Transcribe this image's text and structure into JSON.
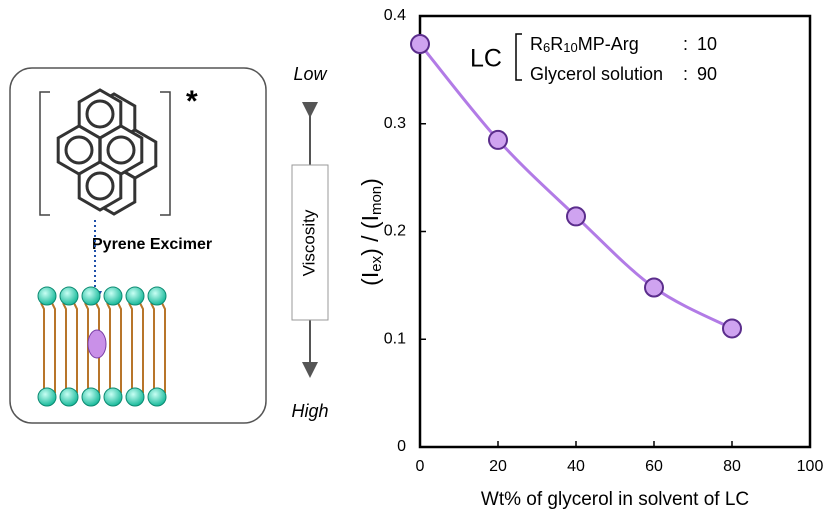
{
  "chart_data": {
    "type": "line",
    "x": [
      0,
      20,
      40,
      60,
      80
    ],
    "series": [
      {
        "values": [
          0.374,
          0.285,
          0.214,
          0.148,
          0.11
        ],
        "color": "#b27be6",
        "marker_fill": "#cfa3f0",
        "marker_edge": "#5b2d8c"
      }
    ],
    "xlim": [
      0,
      100
    ],
    "xticks": [
      0,
      20,
      40,
      60,
      80,
      100
    ],
    "ylim": [
      0,
      0.4
    ],
    "yticks": [
      0,
      0.1,
      0.2,
      0.3,
      0.4
    ],
    "xlabel": "Wt% of glycerol in solvent of LC",
    "ylabel_parts": [
      "(I",
      "ex",
      ") / (I",
      "mon",
      ")"
    ],
    "legend": {
      "label": "LC",
      "separator": ":",
      "items": [
        {
          "name_parts": [
            "R",
            "6",
            "R",
            "10",
            "MP-Arg"
          ],
          "value": 10
        },
        {
          "name_parts": [
            "Glycerol solution"
          ],
          "value": 90
        }
      ]
    }
  },
  "diagram": {
    "excited_mark": "*",
    "excimer_label": "Pyrene Excimer",
    "viscosity_label": "Viscosity",
    "low_label": "Low",
    "high_label": "High"
  }
}
